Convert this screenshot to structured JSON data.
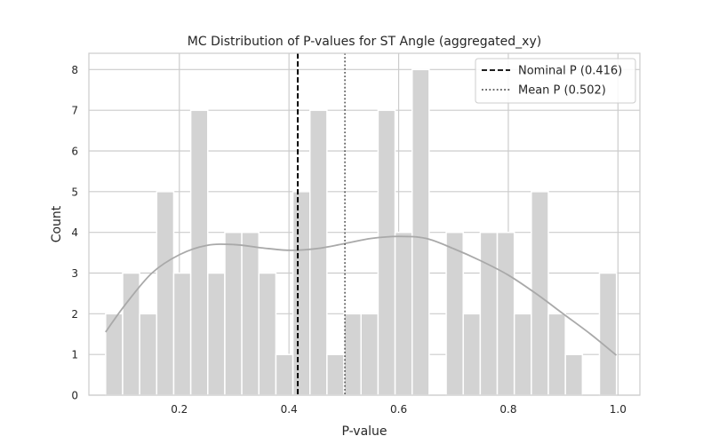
{
  "chart_data": {
    "type": "bar",
    "title": "MC Distribution of P-values for ST Angle (aggregated_xy)",
    "xlabel": "P-value",
    "ylabel": "Count",
    "xlim": [
      0.035,
      1.04
    ],
    "ylim": [
      0,
      8.4
    ],
    "xticks": [
      0.2,
      0.4,
      0.6,
      0.8,
      1.0
    ],
    "xtick_labels": [
      "0.2",
      "0.4",
      "0.6",
      "0.8",
      "1.0"
    ],
    "yticks": [
      0,
      1,
      2,
      3,
      4,
      5,
      6,
      7,
      8
    ],
    "ytick_labels": [
      "0",
      "1",
      "2",
      "3",
      "4",
      "5",
      "6",
      "7",
      "8"
    ],
    "grid": true,
    "legend_position": "top-right",
    "bins": {
      "start": 0.0655,
      "width": 0.03106,
      "counts": [
        2,
        3,
        2,
        5,
        3,
        7,
        3,
        4,
        4,
        3,
        1,
        5,
        7,
        1,
        2,
        2,
        7,
        4,
        8,
        0,
        4,
        2,
        4,
        4,
        2,
        5,
        2,
        1,
        0,
        3
      ]
    },
    "kde": {
      "x": [
        0.0655,
        0.1,
        0.15,
        0.2,
        0.25,
        0.3,
        0.35,
        0.4,
        0.45,
        0.5,
        0.55,
        0.6,
        0.65,
        0.7,
        0.75,
        0.8,
        0.85,
        0.9,
        0.95,
        0.997
      ],
      "y": [
        1.55,
        2.2,
        3.0,
        3.45,
        3.68,
        3.7,
        3.62,
        3.56,
        3.6,
        3.72,
        3.85,
        3.9,
        3.85,
        3.6,
        3.3,
        2.95,
        2.5,
        2.0,
        1.5,
        0.98
      ]
    },
    "reference_lines": [
      {
        "label": "Nominal P (0.416)",
        "x": 0.416,
        "style": "dashed",
        "color": "#000000"
      },
      {
        "label": "Mean P (0.502)",
        "x": 0.502,
        "style": "dotted",
        "color": "#555555"
      }
    ],
    "colors": {
      "bar": "#d3d3d3",
      "bar_edge": "#ffffff",
      "kde": "#a9a9a9",
      "grid": "#cccccc",
      "frame": "#cccccc"
    }
  }
}
